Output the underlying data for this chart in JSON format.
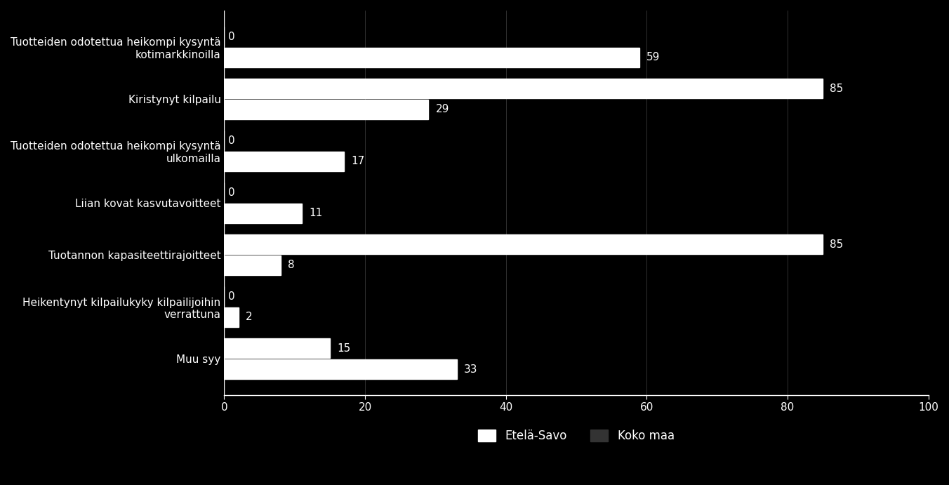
{
  "categories": [
    "Tuotteiden odotettua heikompi kysyntä\nkotimarkkinoilla",
    "Kiristynyt kilpailu",
    "Tuotteiden odotettua heikompi kysyntä\nulkomailla",
    "Liian kovat kasvutavoitteet",
    "Tuotannon kapasiteettirajoitteet",
    "Heikentynyt kilpailukyky kilpailijoihin\nverrattuna",
    "Muu syy"
  ],
  "etela_savo": [
    0,
    85,
    0,
    0,
    85,
    0,
    15
  ],
  "koko_maa": [
    59,
    29,
    17,
    11,
    8,
    2,
    33
  ],
  "etela_savo_color": "#ffffff",
  "koko_maa_color": "#ffffff",
  "etela_savo_legend_color": "#ffffff",
  "koko_maa_legend_color": "#333333",
  "background_color": "#000000",
  "text_color": "#ffffff",
  "bar_height": 0.38,
  "xlim": [
    0,
    100
  ],
  "legend_etela_savo": "Etelä-Savo",
  "legend_koko_maa": "Koko maa",
  "tick_values": [
    0,
    20,
    40,
    60,
    80,
    100
  ],
  "font_size_labels": 11,
  "font_size_values": 11,
  "font_size_legend": 12,
  "font_size_ticks": 11
}
